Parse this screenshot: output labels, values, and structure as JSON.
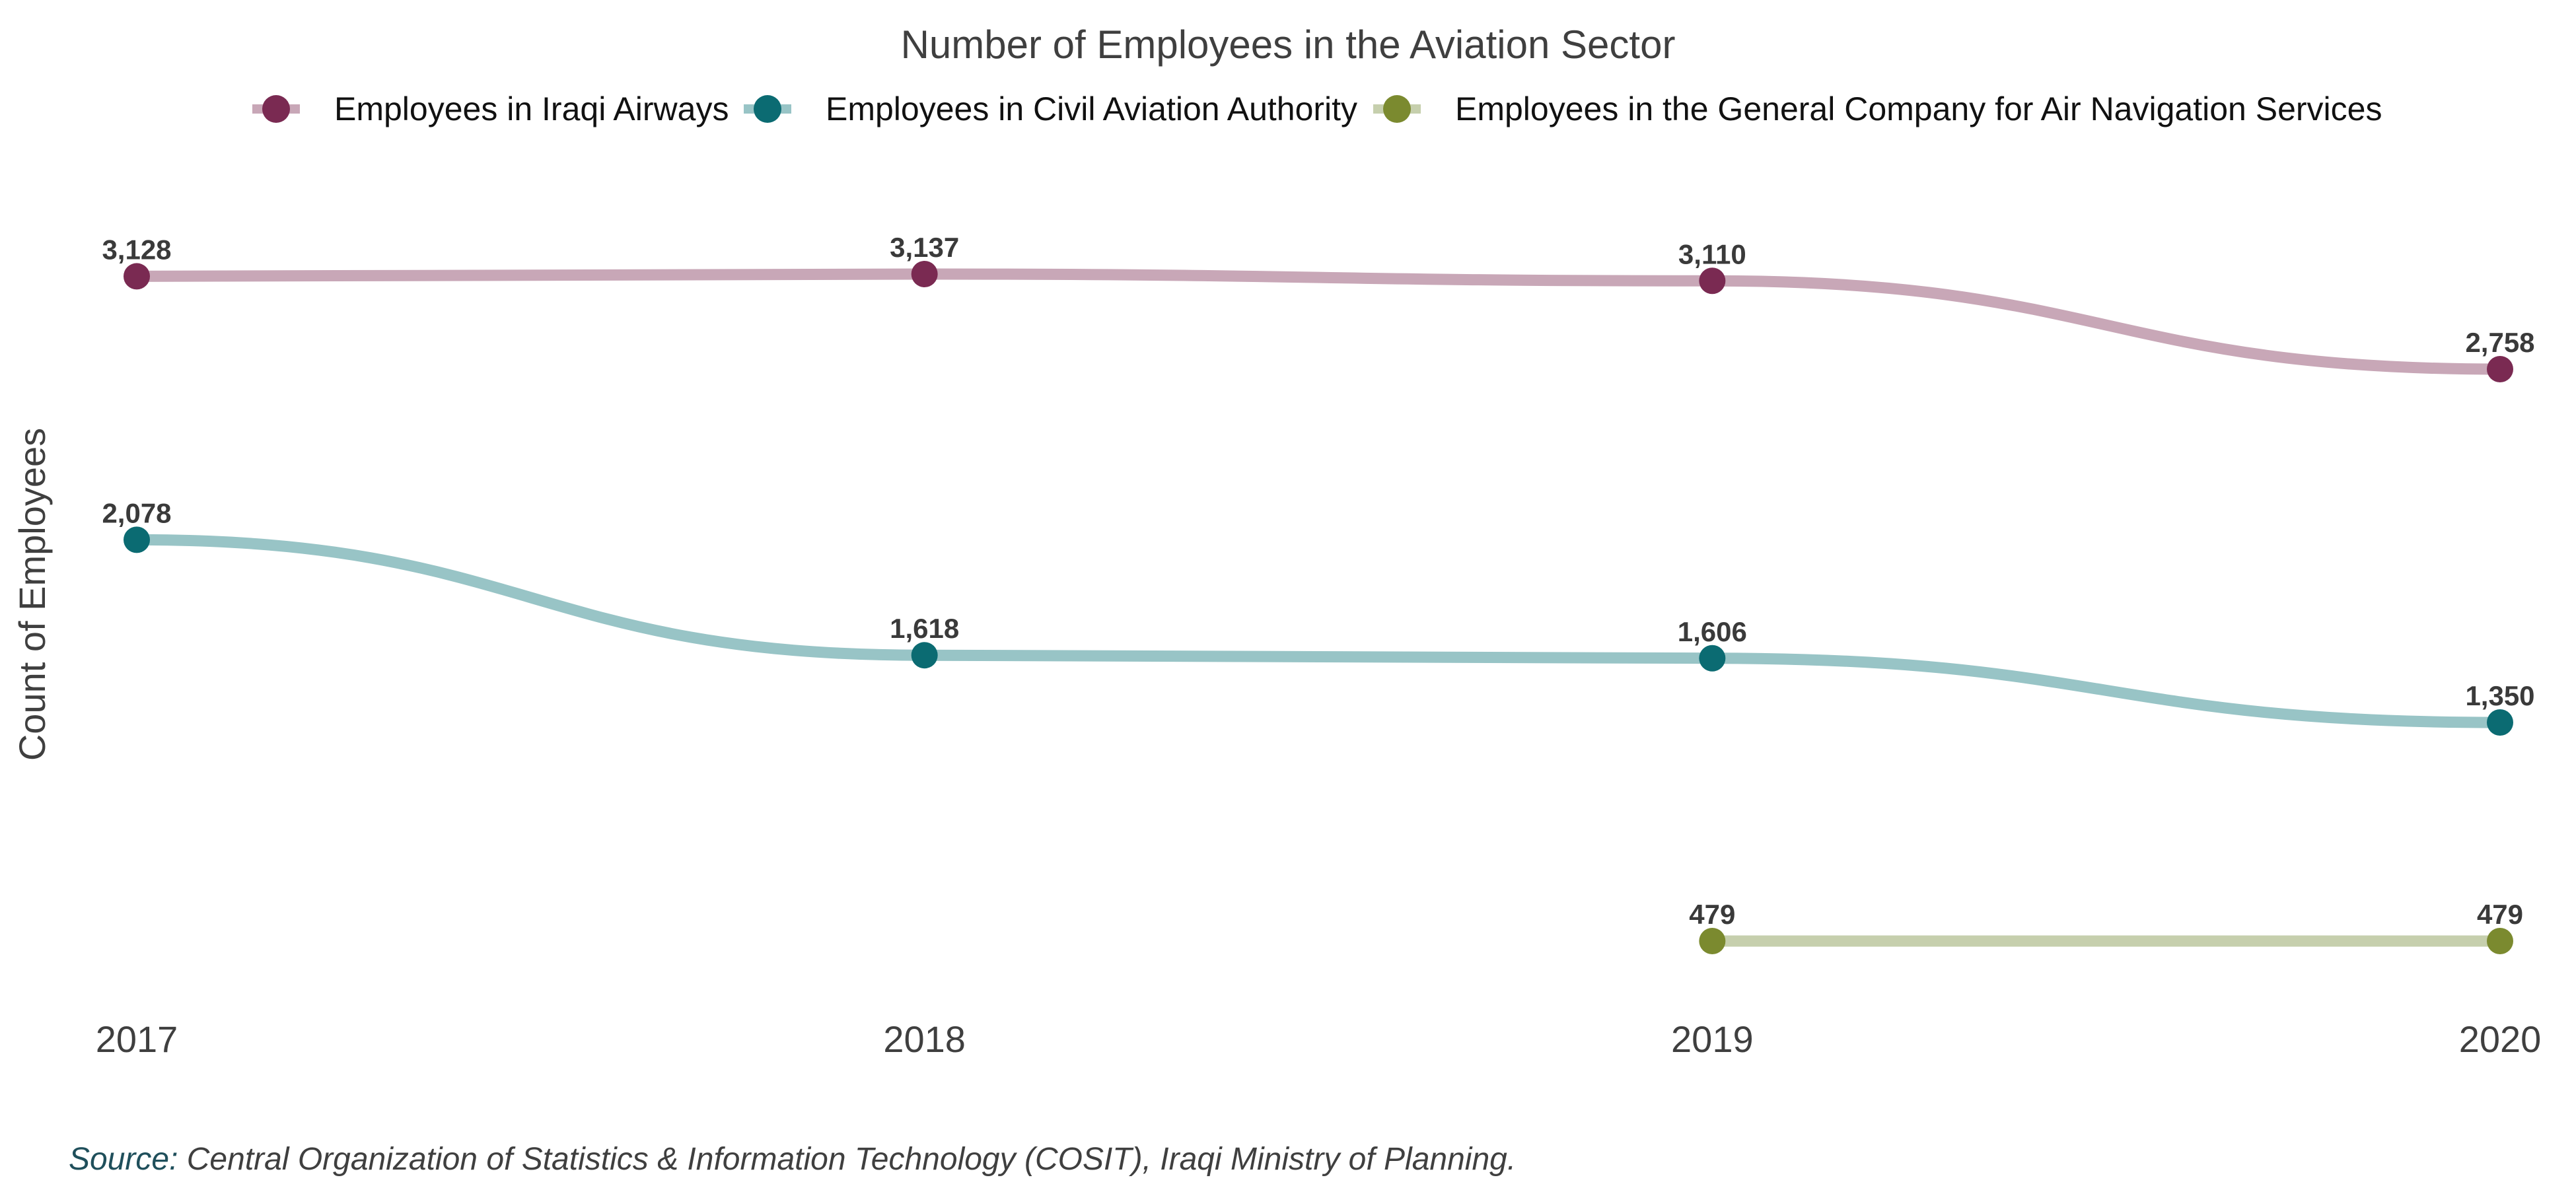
{
  "chart_data": {
    "type": "line",
    "title": "Number of Employees in the Aviation Sector",
    "ylabel": "Count of Employees",
    "xlabel": "",
    "x": [
      "2017",
      "2018",
      "2019",
      "2020"
    ],
    "y_range": [
      400,
      3200
    ],
    "grid": false,
    "legend": "top",
    "series": [
      {
        "name": "Employees in  Iraqi Airways",
        "color": "#7a2a52",
        "line_color": "#c8a7b7",
        "values": [
          3128,
          3137,
          3110,
          2758
        ],
        "labels": [
          "3,128",
          "3,137",
          "3,110",
          "2,758"
        ]
      },
      {
        "name": "Employees in Civil Aviation Authority",
        "color": "#0b6b72",
        "line_color": "#98c4c6",
        "values": [
          2078,
          1618,
          1606,
          1350
        ],
        "labels": [
          "2,078",
          "1,618",
          "1,606",
          "1,350"
        ]
      },
      {
        "name": "Employees in the General Company for Air Navigation Services",
        "color": "#7b8a2f",
        "line_color": "#c6cfad",
        "values": [
          null,
          null,
          479,
          479
        ],
        "labels": [
          "",
          "",
          "479",
          "479"
        ]
      }
    ]
  },
  "source": {
    "prefix": "Source:",
    "text": " Central Organization of Statistics & Information Technology (COSIT), Iraqi Ministry of Planning."
  }
}
